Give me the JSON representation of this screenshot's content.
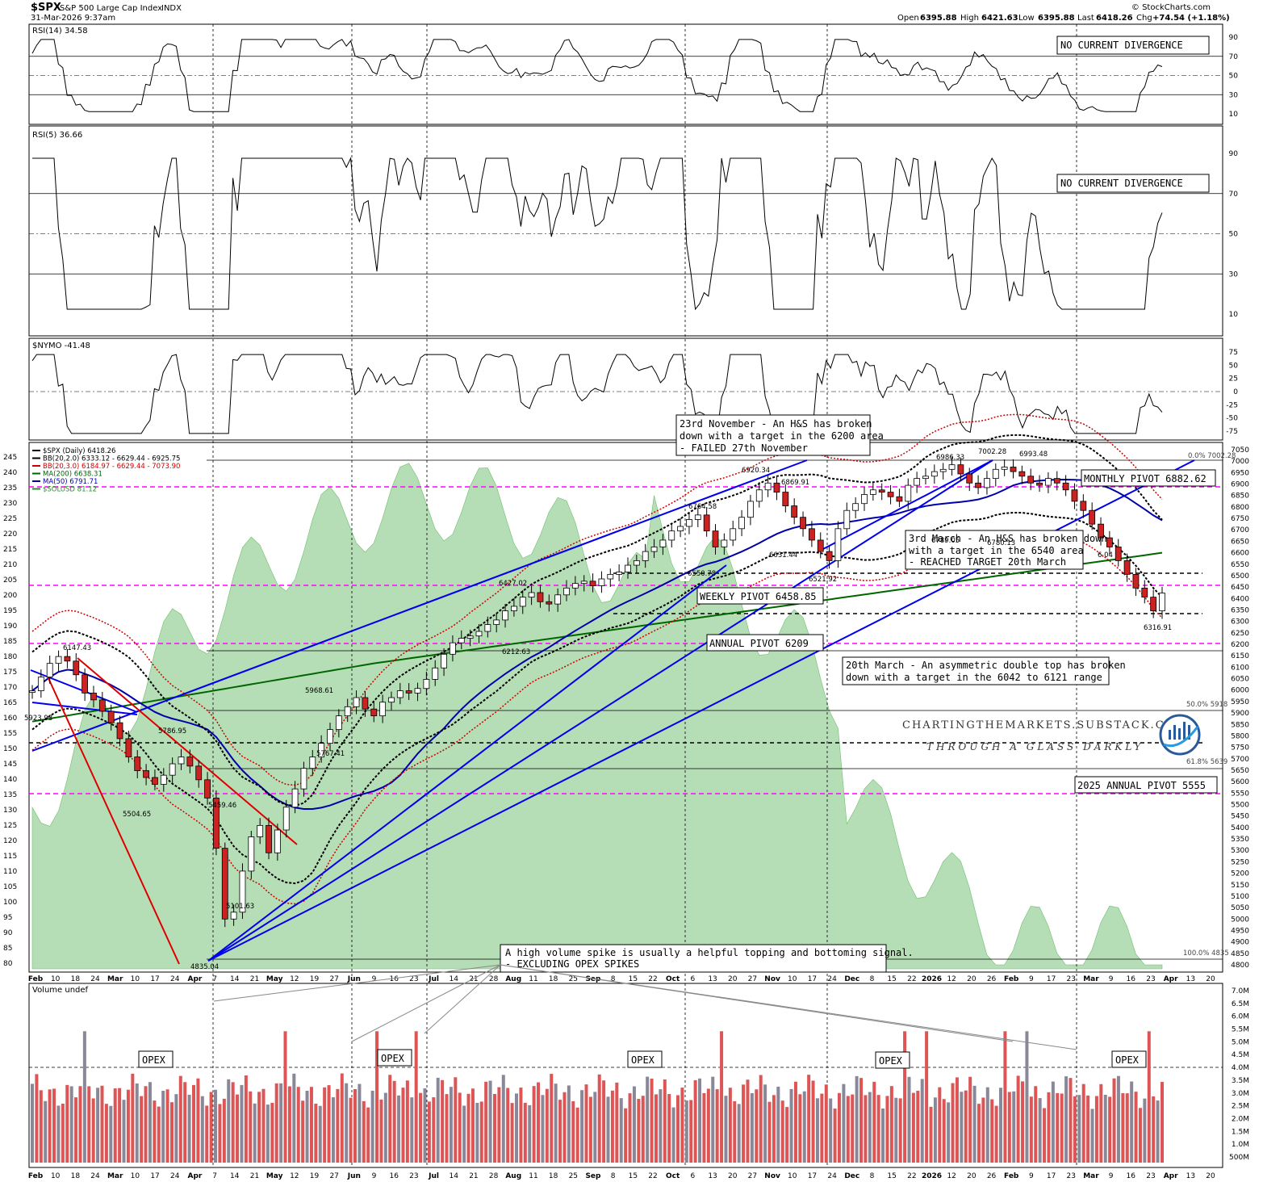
{
  "header": {
    "symbol": "$SPX",
    "name": "S&P 500 Large Cap Index",
    "exchange": "INDX",
    "date": "31-Mar-2026 9:37am",
    "open_label": "Open",
    "open": "6395.88",
    "high_label": "High",
    "high": "6421.63",
    "low_label": "Low",
    "low": "6395.88",
    "last_label": "Last",
    "last": "6418.26",
    "chg_label": "Chg",
    "chg": "+74.54 (+1.18%)",
    "credit": "© StockCharts.com"
  },
  "panels": {
    "rsi14": {
      "label": "RSI(14) 34.58",
      "ticks": [
        "90",
        "70",
        "50",
        "30",
        "10"
      ],
      "note": "NO CURRENT DIVERGENCE"
    },
    "rsi5": {
      "label": "RSI(5) 36.66",
      "ticks": [
        "90",
        "70",
        "50",
        "30",
        "10"
      ],
      "note": "NO CURRENT DIVERGENCE"
    },
    "nymo": {
      "label": "$NYMO -41.48",
      "ticks": [
        "75",
        "50",
        "25",
        "0",
        "-25",
        "-50",
        "-75"
      ]
    },
    "volume": {
      "label": "Volume undef",
      "ticks": [
        "7.0M",
        "6.5M",
        "6.0M",
        "5.5M",
        "5.0M",
        "4.5M",
        "4.0M",
        "3.5M",
        "3.0M",
        "2.5M",
        "2.0M",
        "1.5M",
        "1.0M",
        "500M"
      ]
    }
  },
  "legend": [
    {
      "text": "$SPX (Daily) 6418.26",
      "color": "#000000"
    },
    {
      "text": "BB(20,2.0) 6333.12 - 6629.44 - 6925.75",
      "color": "#000000"
    },
    {
      "text": "BB(20,3.0) 6184.97 - 6629.44 - 7073.90",
      "color": "#cc0000"
    },
    {
      "text": "MA(200) 6638.31",
      "color": "#006600"
    },
    {
      "text": "MA(50) 6791.71",
      "color": "#0000aa"
    },
    {
      "text": "$SOLUSD 81.12",
      "color": "#2e8b2e"
    }
  ],
  "left_ticks": [
    "245",
    "240",
    "235",
    "230",
    "225",
    "220",
    "215",
    "210",
    "205",
    "200",
    "195",
    "190",
    "185",
    "180",
    "175",
    "170",
    "165",
    "160",
    "155",
    "150",
    "145",
    "140",
    "135",
    "130",
    "125",
    "120",
    "115",
    "110",
    "105",
    "100",
    "95",
    "90",
    "85",
    "80"
  ],
  "right_ticks": [
    "7050",
    "7000",
    "6950",
    "6900",
    "6850",
    "6800",
    "6750",
    "6700",
    "6650",
    "6600",
    "6550",
    "6500",
    "6450",
    "6400",
    "6350",
    "6300",
    "6250",
    "6200",
    "6150",
    "6100",
    "6050",
    "6000",
    "5950",
    "5900",
    "5850",
    "5800",
    "5750",
    "5700",
    "5650",
    "5600",
    "5550",
    "5500",
    "5450",
    "5400",
    "5350",
    "5300",
    "5250",
    "5200",
    "5150",
    "5100",
    "5050",
    "5000",
    "4950",
    "4900",
    "4850",
    "4800"
  ],
  "x_labels": [
    "Feb",
    "10",
    "18",
    "24",
    "Mar",
    "10",
    "17",
    "24",
    "Apr",
    "7",
    "14",
    "21",
    "May",
    "12",
    "19",
    "27",
    "Jun",
    "9",
    "16",
    "23",
    "Jul",
    "14",
    "21",
    "28",
    "Aug",
    "11",
    "18",
    "25",
    "Sep",
    "8",
    "15",
    "22",
    "Oct",
    "6",
    "13",
    "20",
    "27",
    "Nov",
    "10",
    "17",
    "24",
    "Dec",
    "8",
    "15",
    "22",
    "2026",
    "12",
    "20",
    "26",
    "Feb",
    "9",
    "17",
    "23",
    "Mar",
    "9",
    "16",
    "23",
    "Apr",
    "13",
    "20"
  ],
  "price_labels": [
    "6147.43",
    "5923.93",
    "5786.95",
    "5504.65",
    "5459.46",
    "5101.63",
    "4835.04",
    "5968.61",
    "5767.41",
    "6427.02",
    "6212.63",
    "6764.58",
    "6550.78",
    "6920.34",
    "6869.91",
    "6631.44",
    "6521.92",
    "6986.33",
    "7002.28",
    "6993.48",
    "6789.05",
    "6780.13",
    "6316.91",
    "6.04"
  ],
  "fib_labels": [
    "0.0% 7002.28",
    "50.0% 5918",
    "61.8% 5639",
    "100.0% 4835"
  ],
  "pivots": {
    "monthly": "MONTHLY PIVOT 6882.62",
    "weekly": "WEEKLY PIVOT 6458.85",
    "annual": "ANNUAL PIVOT 6209",
    "annual_2025": "2025 ANNUAL PIVOT 5555"
  },
  "annotations": {
    "nov": [
      "23rd November - An H&S has broken",
      "down with a target in the 6200 area",
      "- FAILED 27th November"
    ],
    "mar3": [
      "3rd March - An H&S has broken down",
      "with a target in the 6540 area",
      "- REACHED TARGET 20th March"
    ],
    "mar20": [
      "20th March - An asymmetric double top has broken",
      "down with a target in the 6042 to 6121 range"
    ],
    "volume_note": [
      "A high volume spike is usually a helpful topping and bottoming signal.",
      "- EXCLUDING OPEX SPIKES"
    ],
    "opex": "OPEX"
  },
  "watermark": {
    "site": "CHARTINGTHEMARKETS.SUBSTACK.COM",
    "tagline": "THROUGH A GLASS DARKLY"
  },
  "colors": {
    "up": "#ffffff",
    "down": "#cc2222",
    "solusd_fill": "#9ed39e",
    "bb_red": "#cc0000",
    "ma200": "#006600",
    "ma50": "#0000aa",
    "trend_blue": "#0000ee",
    "trend_red": "#dd0000",
    "pivot_magenta": "#ff00ff",
    "rsi_green": "#4d8c4d",
    "rsi_brown": "#8b5a4a",
    "vol_grey": "#888899",
    "vol_red": "#dd5555"
  },
  "chart_data": {
    "type": "candlestick",
    "series_close_approx": [
      5990,
      6050,
      6110,
      6140,
      6120,
      6060,
      5980,
      5950,
      5900,
      5850,
      5780,
      5700,
      5640,
      5610,
      5580,
      5620,
      5670,
      5700,
      5660,
      5600,
      5520,
      5300,
      4990,
      5020,
      5200,
      5350,
      5400,
      5280,
      5380,
      5480,
      5560,
      5650,
      5700,
      5760,
      5820,
      5880,
      5920,
      5960,
      5910,
      5880,
      5940,
      5960,
      5990,
      5980,
      6000,
      6040,
      6090,
      6150,
      6200,
      6220,
      6230,
      6250,
      6280,
      6300,
      6340,
      6360,
      6400,
      6420,
      6380,
      6370,
      6410,
      6440,
      6460,
      6470,
      6450,
      6480,
      6500,
      6510,
      6540,
      6560,
      6600,
      6620,
      6650,
      6690,
      6710,
      6740,
      6760,
      6690,
      6620,
      6650,
      6700,
      6750,
      6820,
      6870,
      6900,
      6860,
      6800,
      6750,
      6700,
      6650,
      6600,
      6560,
      6700,
      6780,
      6810,
      6850,
      6870,
      6860,
      6840,
      6820,
      6890,
      6920,
      6930,
      6950,
      6960,
      6980,
      6940,
      6900,
      6880,
      6920,
      6960,
      6970,
      6950,
      6930,
      6900,
      6890,
      6920,
      6900,
      6870,
      6820,
      6780,
      6720,
      6660,
      6620,
      6560,
      6500,
      6440,
      6400,
      6340,
      6418
    ]
  }
}
